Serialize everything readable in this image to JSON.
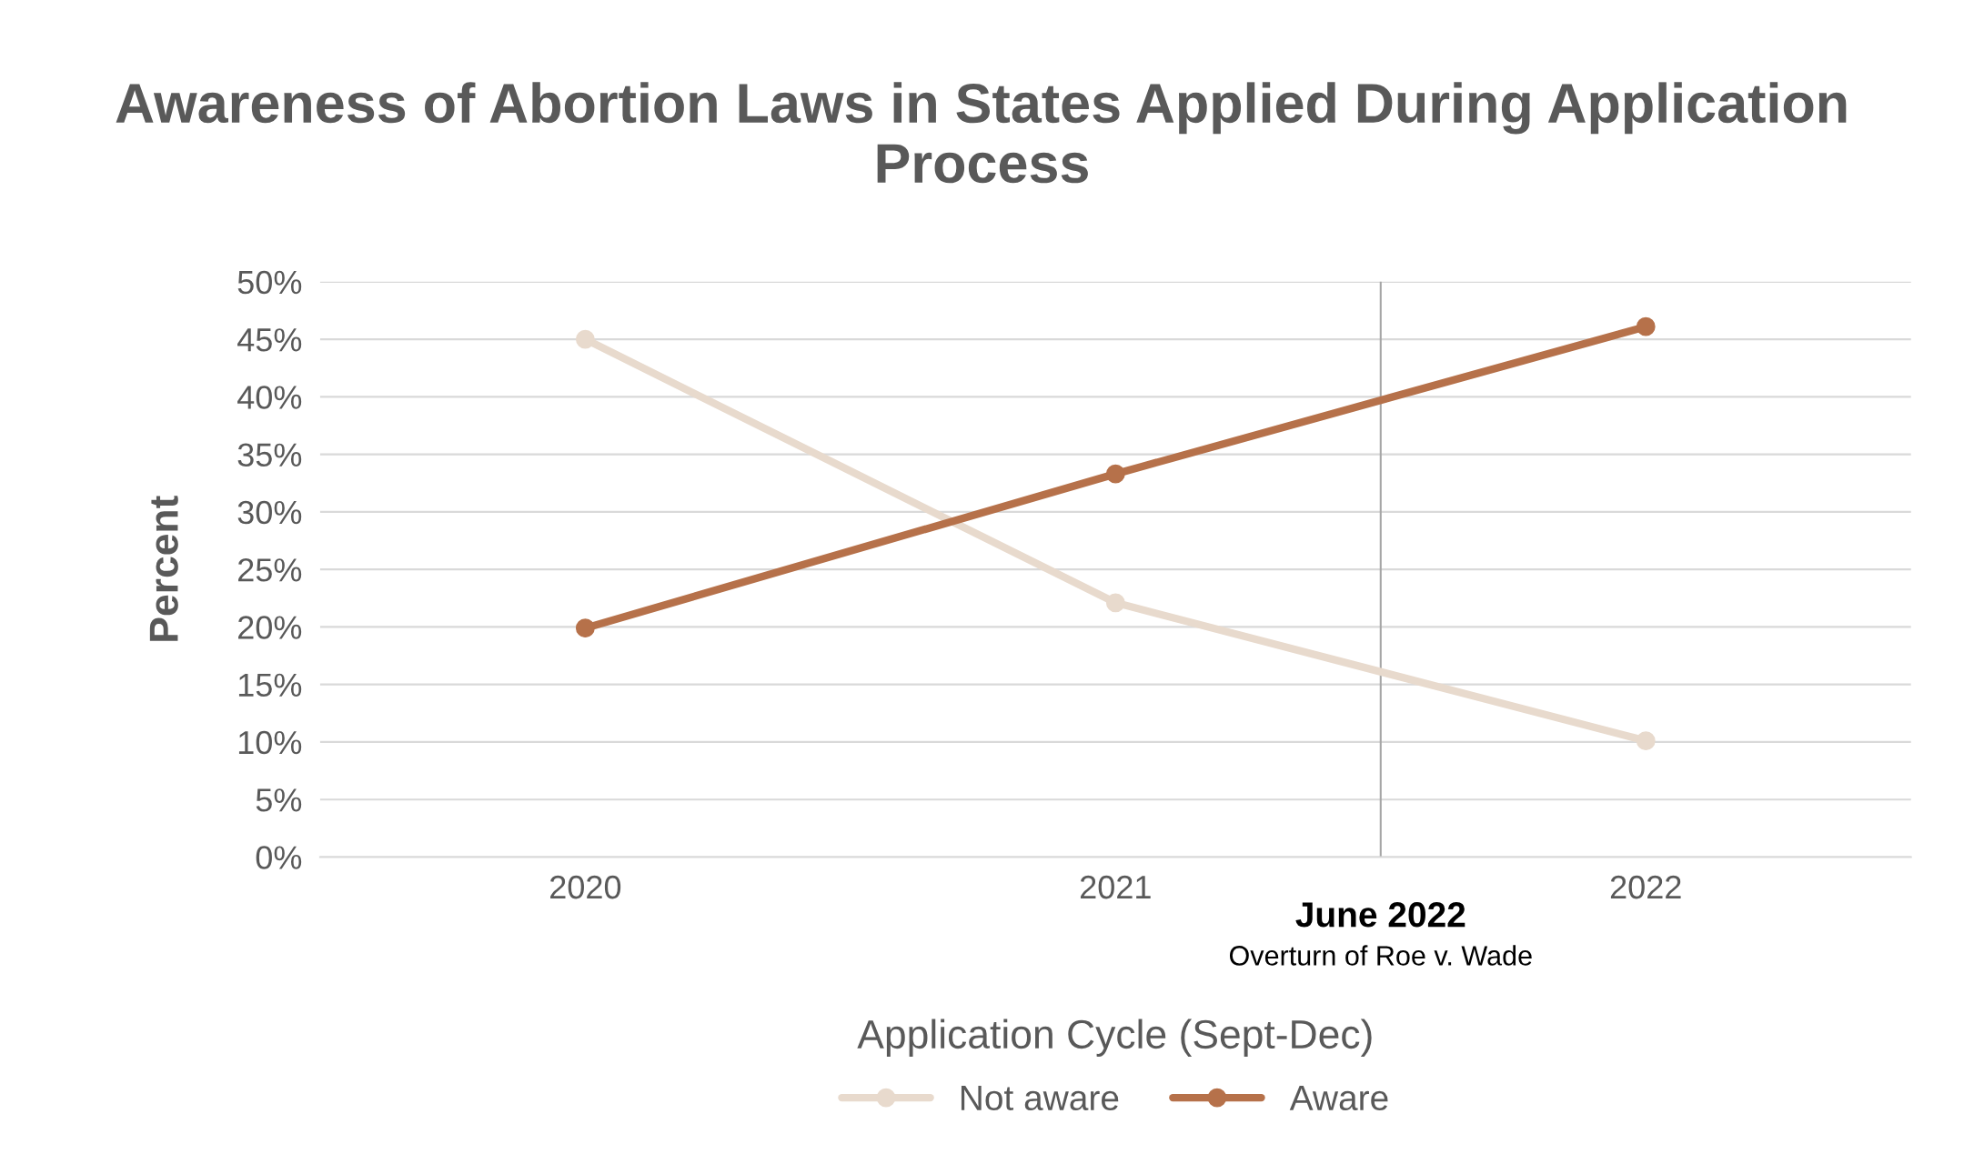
{
  "chart_data": {
    "type": "line",
    "title": "Awareness of Abortion Laws in States Applied During Application Process",
    "xlabel": "Application Cycle (Sept-Dec)",
    "ylabel": "Percent",
    "x": [
      2020,
      2021,
      2022
    ],
    "xlim": [
      2019.5,
      2022.5
    ],
    "xticks": [
      2020,
      2021,
      2022
    ],
    "ylim": [
      0,
      50
    ],
    "yticks": [
      {
        "value": 0,
        "label": "0%"
      },
      {
        "value": 5,
        "label": "5%"
      },
      {
        "value": 10,
        "label": "10%"
      },
      {
        "value": 15,
        "label": "15%"
      },
      {
        "value": 20,
        "label": "20%"
      },
      {
        "value": 25,
        "label": "25%"
      },
      {
        "value": 30,
        "label": "30%"
      },
      {
        "value": 35,
        "label": "35%"
      },
      {
        "value": 40,
        "label": "40%"
      },
      {
        "value": 45,
        "label": "45%"
      },
      {
        "value": 50,
        "label": "50%"
      }
    ],
    "series": [
      {
        "name": "Not aware",
        "color": "#e8dacd",
        "values": [
          45,
          22.1,
          10.1
        ]
      },
      {
        "name": "Aware",
        "color": "#b6714a",
        "values": [
          19.9,
          33.3,
          46.1
        ]
      }
    ],
    "ref_lines": [
      {
        "axis": "x",
        "value": 2021.5,
        "label": "June 2022",
        "color": "#a6a6a6"
      }
    ],
    "annotations": [
      "Overturn of Roe v. Wade"
    ],
    "grid": "y",
    "legend": "bottom",
    "marker": "circle",
    "line_style": "solid"
  }
}
